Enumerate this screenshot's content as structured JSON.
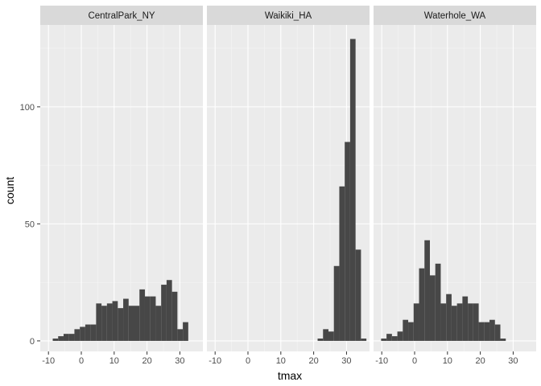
{
  "chart_data": {
    "type": "bar",
    "subtype": "faceted-histogram",
    "xlabel": "tmax",
    "ylabel": "count",
    "xlim": [
      -12.5,
      37
    ],
    "ylim": [
      -4.5,
      135
    ],
    "x_ticks": [
      -10,
      0,
      10,
      20,
      30
    ],
    "y_ticks": [
      0,
      50,
      100
    ],
    "bin_width": 1.65,
    "bar_color": "#474747",
    "panel_bg": "#ebebeb",
    "strip_bg": "#d9d9d9",
    "facets": [
      {
        "name": "CentralPark_NY",
        "bin_start": -8.7,
        "counts": [
          1,
          2,
          3,
          3,
          5,
          6,
          7,
          7,
          16,
          15,
          16,
          17,
          14,
          18,
          15,
          15,
          22,
          19,
          19,
          15,
          24,
          26,
          21,
          5,
          8
        ]
      },
      {
        "name": "Waikiki_HA",
        "bin_start": 21.2,
        "counts": [
          1,
          5,
          4,
          32,
          66,
          85,
          129,
          39,
          1
        ]
      },
      {
        "name": "Waterhole_WA",
        "bin_start": -10.2,
        "counts": [
          1,
          3,
          2,
          4,
          9,
          8,
          16,
          31,
          43,
          28,
          33,
          16,
          20,
          15,
          16,
          19,
          16,
          16,
          8,
          8,
          9,
          7,
          1
        ]
      }
    ]
  }
}
